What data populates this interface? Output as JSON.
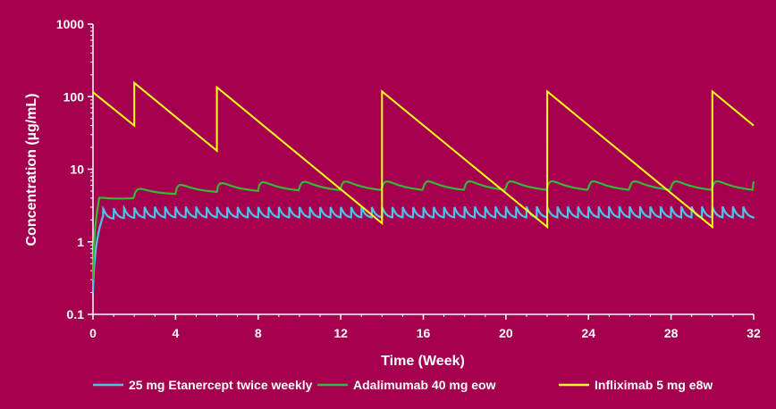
{
  "chart_data": {
    "type": "line",
    "title": "",
    "xlabel": "Time (Week)",
    "ylabel": "Concentration (µg/mL)",
    "xlim": [
      0,
      32
    ],
    "ylim": [
      0.1,
      1000
    ],
    "y_scale": "log",
    "x_ticks": [
      "0",
      "4",
      "8",
      "12",
      "16",
      "20",
      "24",
      "28",
      "32"
    ],
    "y_ticks": [
      "0.1",
      "1",
      "10",
      "100",
      "1000"
    ],
    "grid": false,
    "legend_position": "bottom",
    "background_color": "#a50050",
    "series": [
      {
        "name": "25 mg Etanercept twice weekly",
        "color": "#4fc3e8",
        "pattern": "twice-weekly dosing; rises from 0.2 to steady state oscillating ~2.1–2.9",
        "x": [
          0,
          0.1,
          0.3,
          0.5,
          1,
          2,
          4,
          8,
          12,
          16,
          20,
          24,
          28,
          31.5,
          32
        ],
        "y": [
          0.2,
          0.9,
          1.2,
          1.9,
          2.2,
          2.4,
          2.5,
          2.5,
          2.5,
          2.5,
          2.5,
          2.5,
          2.5,
          2.5,
          2.1
        ]
      },
      {
        "name": "Adalimumab 40 mg eow",
        "color": "#33bb33",
        "pattern": "every-other-week dosing; rises to steady state oscillating ~5–7.5",
        "x": [
          0,
          0.2,
          0.5,
          1,
          2,
          4,
          6,
          8,
          12,
          16,
          20,
          24,
          28,
          32
        ],
        "y": [
          0.3,
          2.0,
          3.5,
          4.0,
          3.2,
          4.5,
          5.0,
          5.3,
          5.5,
          5.6,
          5.6,
          5.6,
          5.6,
          6.8
        ]
      },
      {
        "name": "Infliximab 5 mg e8w",
        "color": "#ffff1a",
        "pattern": "sawtooth: peaks at dosing times, exponential decline between",
        "x": [
          0,
          2,
          2,
          6,
          6,
          14,
          14,
          22,
          22,
          30,
          30,
          32
        ],
        "y": [
          115,
          40,
          155,
          18,
          135,
          1.8,
          118,
          1.6,
          118,
          1.6,
          118,
          40
        ]
      }
    ]
  }
}
